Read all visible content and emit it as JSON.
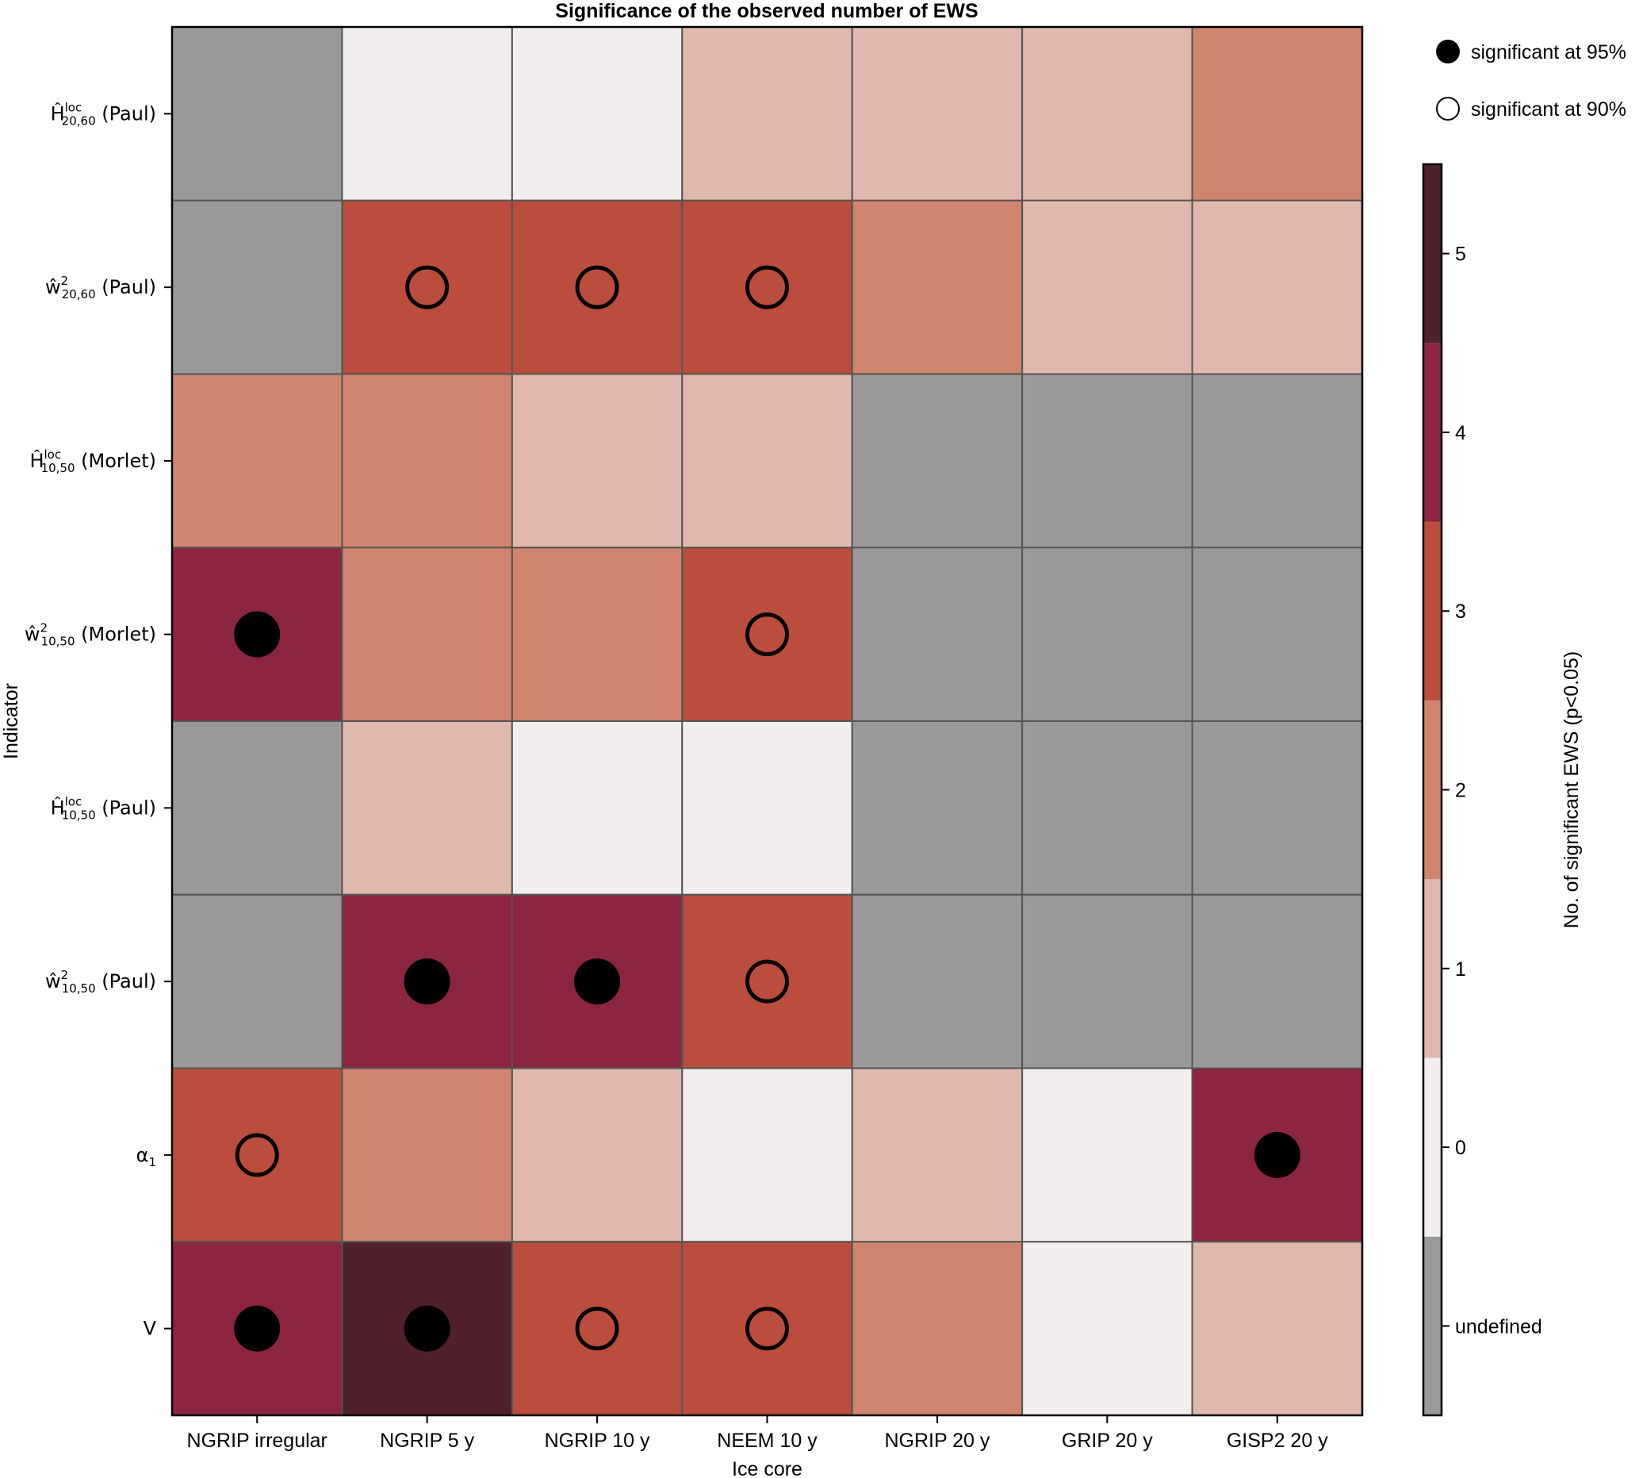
{
  "chart_data": {
    "type": "heatmap",
    "title": "Significance of the observed number of EWS",
    "xlabel": "Ice core",
    "ylabel": "Indicator",
    "x_categories": [
      "NGRIP irregular",
      "NGRIP 5 y",
      "NGRIP 10 y",
      "NEEM 10 y",
      "NGRIP 20 y",
      "GRIP 20 y",
      "GISP2 20 y"
    ],
    "y_categories": [
      {
        "base": "Ĥ",
        "sup": "loc",
        "sub": "20,60",
        "suffix": " (Paul)"
      },
      {
        "base": "ŵ",
        "sup": "2",
        "sub": "20,60",
        "suffix": " (Paul)"
      },
      {
        "base": "Ĥ",
        "sup": "loc",
        "sub": "10,50",
        "suffix": " (Morlet)"
      },
      {
        "base": "ŵ",
        "sup": "2",
        "sub": "10,50",
        "suffix": " (Morlet)"
      },
      {
        "base": "Ĥ",
        "sup": "loc",
        "sub": "10,50",
        "suffix": " (Paul)"
      },
      {
        "base": "ŵ",
        "sup": "2",
        "sub": "10,50",
        "suffix": " (Paul)"
      },
      {
        "base": "α",
        "sup": "",
        "sub": "1",
        "suffix": ""
      },
      {
        "base": "V",
        "sup": "",
        "sub": "",
        "suffix": ""
      }
    ],
    "values": [
      [
        null,
        0,
        0,
        1,
        1,
        1,
        2
      ],
      [
        null,
        3,
        3,
        3,
        2,
        1,
        1
      ],
      [
        2,
        2,
        1,
        1,
        null,
        null,
        null
      ],
      [
        4,
        2,
        2,
        3,
        null,
        null,
        null
      ],
      [
        null,
        1,
        0,
        0,
        null,
        null,
        null
      ],
      [
        null,
        4,
        4,
        3,
        null,
        null,
        null
      ],
      [
        3,
        2,
        1,
        0,
        1,
        0,
        4
      ],
      [
        4,
        5,
        3,
        3,
        2,
        0,
        1
      ]
    ],
    "significance": [
      [
        null,
        null,
        null,
        null,
        null,
        null,
        null
      ],
      [
        null,
        90,
        90,
        90,
        null,
        null,
        null
      ],
      [
        null,
        null,
        null,
        null,
        null,
        null,
        null
      ],
      [
        95,
        null,
        null,
        90,
        null,
        null,
        null
      ],
      [
        null,
        null,
        null,
        null,
        null,
        null,
        null
      ],
      [
        null,
        95,
        95,
        90,
        null,
        null,
        null
      ],
      [
        90,
        null,
        null,
        null,
        null,
        null,
        95
      ],
      [
        95,
        95,
        90,
        90,
        null,
        null,
        null
      ]
    ],
    "colorbar": {
      "label": "No. of significant EWS (p<0.05)",
      "range": [
        -1.5,
        5.5
      ],
      "ticks": [
        {
          "value": -1,
          "label": "undefined"
        },
        {
          "value": 0,
          "label": "0"
        },
        {
          "value": 1,
          "label": "1"
        },
        {
          "value": 2,
          "label": "2"
        },
        {
          "value": 3,
          "label": "3"
        },
        {
          "value": 4,
          "label": "4"
        },
        {
          "value": 5,
          "label": "5"
        }
      ],
      "colors": {
        "undefined": "#999999",
        "0": "#f2eeed",
        "1": "#e0b8ad",
        "2": "#cf856d",
        "3": "#ba4d3c",
        "4": "#8b2540",
        "5": "#50212a"
      }
    },
    "legend": {
      "placement": "top-right",
      "entries": [
        {
          "marker": "filled-circle",
          "label": "significant at 95%",
          "level": 95
        },
        {
          "marker": "open-circle",
          "label": "significant at 90%",
          "level": 90
        }
      ]
    },
    "grid": false
  }
}
